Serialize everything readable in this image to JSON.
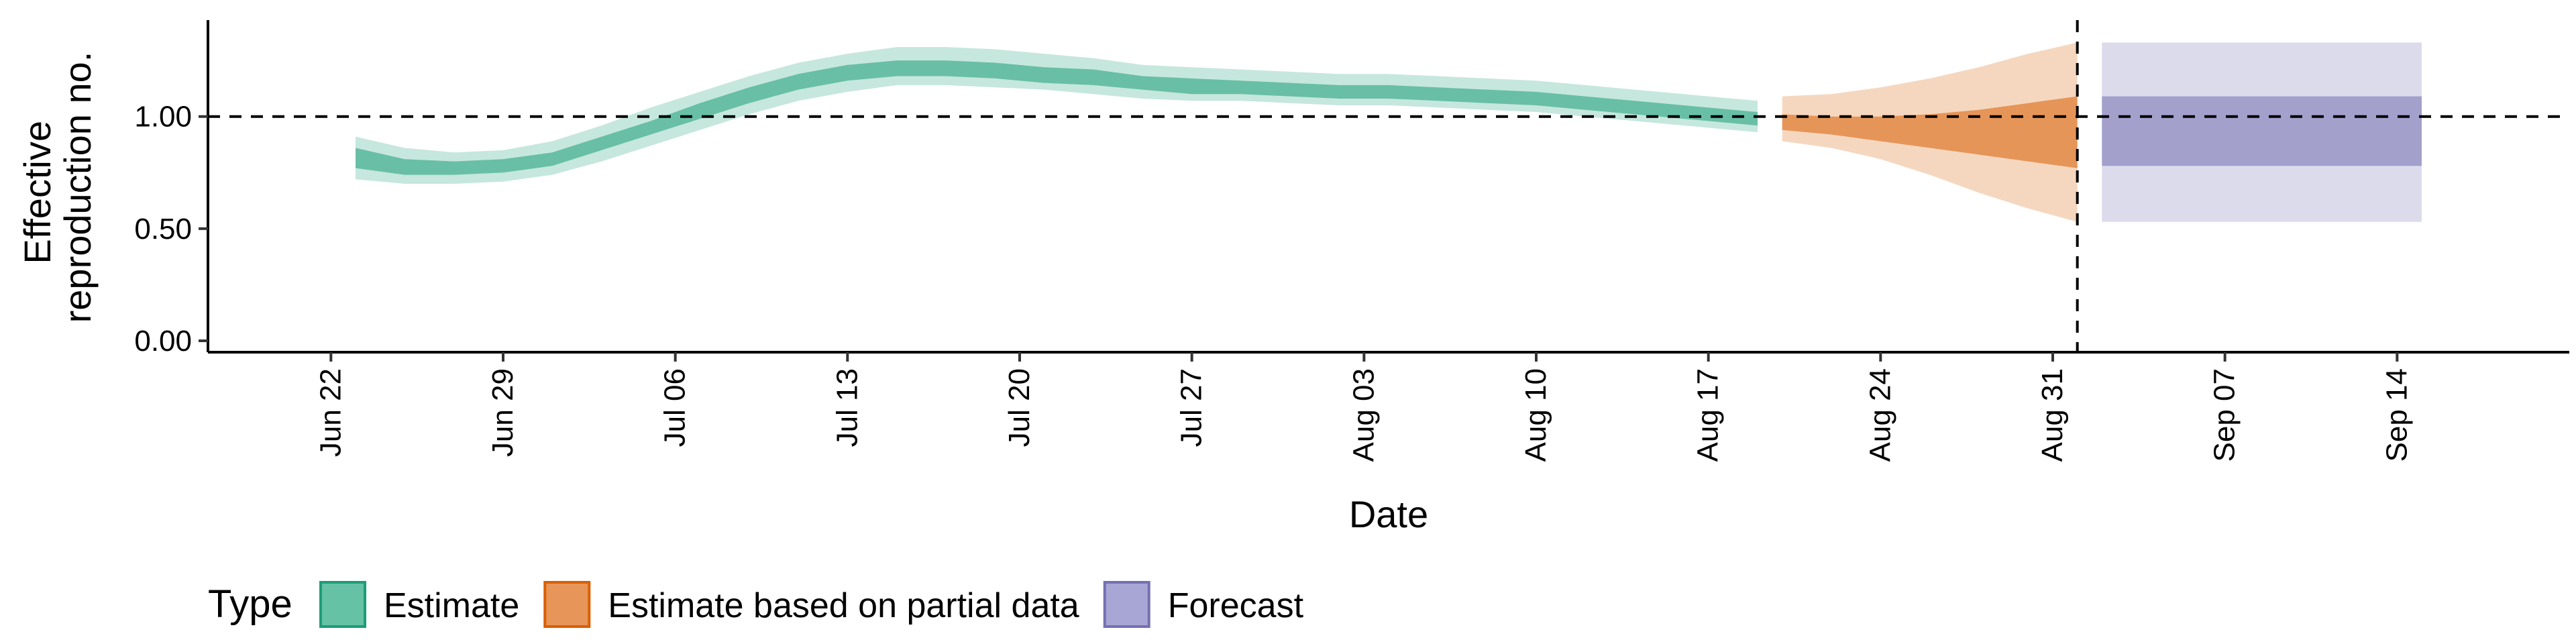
{
  "chart_data": {
    "type": "area",
    "xlabel": "Date",
    "ylabel": [
      "Effective",
      "reproduction no."
    ],
    "ylim": [
      0,
      1.4
    ],
    "xlim": [
      "2020-06-17",
      "2020-09-21"
    ],
    "y_ticks": [
      {
        "value": 0.0,
        "label": "0.00"
      },
      {
        "value": 0.5,
        "label": "0.50"
      },
      {
        "value": 1.0,
        "label": "1.00"
      }
    ],
    "x_ticks": [
      {
        "date": "2020-06-22",
        "label": "Jun 22"
      },
      {
        "date": "2020-06-29",
        "label": "Jun 29"
      },
      {
        "date": "2020-07-06",
        "label": "Jul 06"
      },
      {
        "date": "2020-07-13",
        "label": "Jul 13"
      },
      {
        "date": "2020-07-20",
        "label": "Jul 20"
      },
      {
        "date": "2020-07-27",
        "label": "Jul 27"
      },
      {
        "date": "2020-08-03",
        "label": "Aug 03"
      },
      {
        "date": "2020-08-10",
        "label": "Aug 10"
      },
      {
        "date": "2020-08-17",
        "label": "Aug 17"
      },
      {
        "date": "2020-08-24",
        "label": "Aug 24"
      },
      {
        "date": "2020-08-31",
        "label": "Aug 31"
      },
      {
        "date": "2020-09-07",
        "label": "Sep 07"
      },
      {
        "date": "2020-09-14",
        "label": "Sep 14"
      }
    ],
    "reference_lines": {
      "horizontal_y": 1.0,
      "vertical_date": "2020-09-01",
      "style": "dashed"
    },
    "grid": false,
    "legend": {
      "title": "Type",
      "position": "bottom-left",
      "items": [
        {
          "label": "Estimate",
          "fill": "#66c2a5",
          "border": "#1b9e77"
        },
        {
          "label": "Estimate based on partial data",
          "fill": "#e8955a",
          "border": "#d95f02"
        },
        {
          "label": "Forecast",
          "fill": "#a8a6d4",
          "border": "#7570b3"
        }
      ]
    },
    "series": [
      {
        "name": "Estimate",
        "color": "#1b9e77",
        "points": [
          {
            "date": "2020-06-23",
            "l90": 0.72,
            "l50": 0.77,
            "u50": 0.86,
            "u90": 0.91
          },
          {
            "date": "2020-06-25",
            "l90": 0.7,
            "l50": 0.74,
            "u50": 0.81,
            "u90": 0.86
          },
          {
            "date": "2020-06-27",
            "l90": 0.7,
            "l50": 0.74,
            "u50": 0.8,
            "u90": 0.84
          },
          {
            "date": "2020-06-29",
            "l90": 0.71,
            "l50": 0.75,
            "u50": 0.81,
            "u90": 0.85
          },
          {
            "date": "2020-07-01",
            "l90": 0.74,
            "l50": 0.78,
            "u50": 0.84,
            "u90": 0.89
          },
          {
            "date": "2020-07-03",
            "l90": 0.8,
            "l50": 0.85,
            "u50": 0.91,
            "u90": 0.96
          },
          {
            "date": "2020-07-05",
            "l90": 0.87,
            "l50": 0.92,
            "u50": 0.98,
            "u90": 1.04
          },
          {
            "date": "2020-07-07",
            "l90": 0.94,
            "l50": 0.99,
            "u50": 1.06,
            "u90": 1.11
          },
          {
            "date": "2020-07-09",
            "l90": 1.01,
            "l50": 1.06,
            "u50": 1.13,
            "u90": 1.18
          },
          {
            "date": "2020-07-11",
            "l90": 1.07,
            "l50": 1.12,
            "u50": 1.19,
            "u90": 1.24
          },
          {
            "date": "2020-07-13",
            "l90": 1.11,
            "l50": 1.16,
            "u50": 1.23,
            "u90": 1.28
          },
          {
            "date": "2020-07-15",
            "l90": 1.14,
            "l50": 1.18,
            "u50": 1.25,
            "u90": 1.31
          },
          {
            "date": "2020-07-17",
            "l90": 1.14,
            "l50": 1.18,
            "u50": 1.25,
            "u90": 1.31
          },
          {
            "date": "2020-07-19",
            "l90": 1.13,
            "l50": 1.17,
            "u50": 1.24,
            "u90": 1.3
          },
          {
            "date": "2020-07-21",
            "l90": 1.12,
            "l50": 1.15,
            "u50": 1.22,
            "u90": 1.28
          },
          {
            "date": "2020-07-23",
            "l90": 1.1,
            "l50": 1.14,
            "u50": 1.21,
            "u90": 1.26
          },
          {
            "date": "2020-07-25",
            "l90": 1.08,
            "l50": 1.12,
            "u50": 1.18,
            "u90": 1.23
          },
          {
            "date": "2020-07-27",
            "l90": 1.07,
            "l50": 1.1,
            "u50": 1.17,
            "u90": 1.22
          },
          {
            "date": "2020-07-29",
            "l90": 1.07,
            "l50": 1.1,
            "u50": 1.16,
            "u90": 1.21
          },
          {
            "date": "2020-07-31",
            "l90": 1.06,
            "l50": 1.09,
            "u50": 1.15,
            "u90": 1.2
          },
          {
            "date": "2020-08-02",
            "l90": 1.05,
            "l50": 1.08,
            "u50": 1.14,
            "u90": 1.19
          },
          {
            "date": "2020-08-04",
            "l90": 1.05,
            "l50": 1.08,
            "u50": 1.14,
            "u90": 1.19
          },
          {
            "date": "2020-08-06",
            "l90": 1.04,
            "l50": 1.07,
            "u50": 1.13,
            "u90": 1.18
          },
          {
            "date": "2020-08-08",
            "l90": 1.03,
            "l50": 1.06,
            "u50": 1.12,
            "u90": 1.17
          },
          {
            "date": "2020-08-10",
            "l90": 1.02,
            "l50": 1.05,
            "u50": 1.11,
            "u90": 1.16
          },
          {
            "date": "2020-08-12",
            "l90": 1.0,
            "l50": 1.03,
            "u50": 1.09,
            "u90": 1.14
          },
          {
            "date": "2020-08-14",
            "l90": 0.98,
            "l50": 1.01,
            "u50": 1.07,
            "u90": 1.12
          },
          {
            "date": "2020-08-16",
            "l90": 0.96,
            "l50": 0.99,
            "u50": 1.05,
            "u90": 1.1
          },
          {
            "date": "2020-08-18",
            "l90": 0.94,
            "l50": 0.97,
            "u50": 1.03,
            "u90": 1.08
          },
          {
            "date": "2020-08-19",
            "l90": 0.93,
            "l50": 0.96,
            "u50": 1.02,
            "u90": 1.07
          }
        ]
      },
      {
        "name": "Estimate based on partial data",
        "color": "#d95f02",
        "points": [
          {
            "date": "2020-08-20",
            "l90": 0.89,
            "l50": 0.94,
            "u50": 1.01,
            "u90": 1.09
          },
          {
            "date": "2020-08-22",
            "l90": 0.86,
            "l50": 0.92,
            "u50": 1.0,
            "u90": 1.1
          },
          {
            "date": "2020-08-24",
            "l90": 0.81,
            "l50": 0.89,
            "u50": 1.0,
            "u90": 1.13
          },
          {
            "date": "2020-08-26",
            "l90": 0.74,
            "l50": 0.86,
            "u50": 1.01,
            "u90": 1.17
          },
          {
            "date": "2020-08-28",
            "l90": 0.66,
            "l50": 0.83,
            "u50": 1.03,
            "u90": 1.22
          },
          {
            "date": "2020-08-30",
            "l90": 0.59,
            "l50": 0.8,
            "u50": 1.06,
            "u90": 1.28
          },
          {
            "date": "2020-09-01",
            "l90": 0.53,
            "l50": 0.77,
            "u50": 1.09,
            "u90": 1.33
          }
        ]
      },
      {
        "name": "Forecast",
        "color": "#7570b3",
        "points": [
          {
            "date": "2020-09-02",
            "l90": 0.53,
            "l50": 0.78,
            "u50": 1.09,
            "u90": 1.33
          },
          {
            "date": "2020-09-15",
            "l90": 0.53,
            "l50": 0.78,
            "u50": 1.09,
            "u90": 1.33
          }
        ]
      }
    ]
  }
}
